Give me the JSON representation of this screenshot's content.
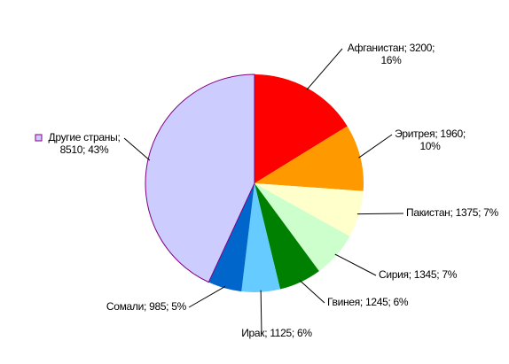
{
  "chart_data": {
    "type": "pie",
    "values": [
      3200,
      1960,
      1375,
      1345,
      1245,
      1125,
      985,
      8510
    ],
    "value_labels": [
      [
        "Афганистан; 3200;",
        "16%"
      ],
      [
        "Эритрея; 1960;",
        "10%"
      ],
      [
        "Пакистан; 1375; 7%"
      ],
      [
        "Сирия; 1345; 7%"
      ],
      [
        "Гвинея; 1245; 6%"
      ],
      [
        "Ирак; 1125; 6%"
      ],
      [
        "Сомали; 985; 5%"
      ],
      [
        "Другие страны;",
        "8510; 43%"
      ]
    ],
    "colors": [
      "#ff0000",
      "#ff9900",
      "#ffffcc",
      "#ccffcc",
      "#008000",
      "#66ccff",
      "#0066cc",
      "#ccccff"
    ]
  }
}
